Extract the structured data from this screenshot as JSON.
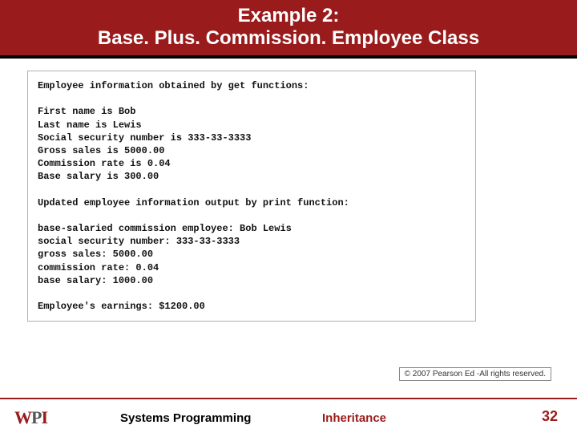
{
  "header": {
    "title_line1": "Example 2:",
    "title_line2": "Base. Plus. Commission. Employee Class",
    "bg_color": "#9a1b1b",
    "underline_color": "#000000",
    "text_color": "#ffffff",
    "font_family": "Comic Sans MS",
    "font_size_pt": 18
  },
  "output": {
    "font_family": "Lucida Console",
    "font_size_pt": 9,
    "border_color": "#b0b0b0",
    "lines": [
      {
        "text": "Employee information obtained by get functions:",
        "bold": true
      },
      {
        "text": "",
        "bold": false
      },
      {
        "text": "First name is Bob",
        "bold": true
      },
      {
        "text": "Last name is Lewis",
        "bold": true
      },
      {
        "text": "Social security number is 333-33-3333",
        "bold": true
      },
      {
        "text": "Gross sales is 5000.00",
        "bold": true
      },
      {
        "text": "Commission rate is 0.04",
        "bold": true
      },
      {
        "text": "Base salary is 300.00",
        "bold": true
      },
      {
        "text": "",
        "bold": false
      },
      {
        "text": "Updated employee information output by print function:",
        "bold": true
      },
      {
        "text": "",
        "bold": false
      },
      {
        "text": "base-salaried commission employee: Bob Lewis",
        "bold": true
      },
      {
        "text": "social security number: 333-33-3333",
        "bold": true
      },
      {
        "text": "gross sales: 5000.00",
        "bold": true
      },
      {
        "text": "commission rate: 0.04",
        "bold": true
      },
      {
        "text": "base salary: 1000.00",
        "bold": true
      },
      {
        "text": "",
        "bold": false
      },
      {
        "text": "Employee's earnings: $1200.00",
        "bold": true
      }
    ]
  },
  "copyright": {
    "text": "© 2007 Pearson Ed -All rights reserved.",
    "border_color": "#888888",
    "font_size_pt": 8
  },
  "footer": {
    "rule_color": "#9a1b1b",
    "logo": {
      "w": "W",
      "p": "P",
      "i": "I",
      "w_color": "#9a1b1b",
      "p_color": "#555555",
      "i_color": "#9a1b1b"
    },
    "center_text": "Systems Programming",
    "topic_text": "Inheritance",
    "page_number": "32",
    "center_color": "#000000",
    "topic_color": "#9a1b1b",
    "page_color": "#9a1b1b",
    "font_family": "Comic Sans MS",
    "font_size_pt": 12
  }
}
